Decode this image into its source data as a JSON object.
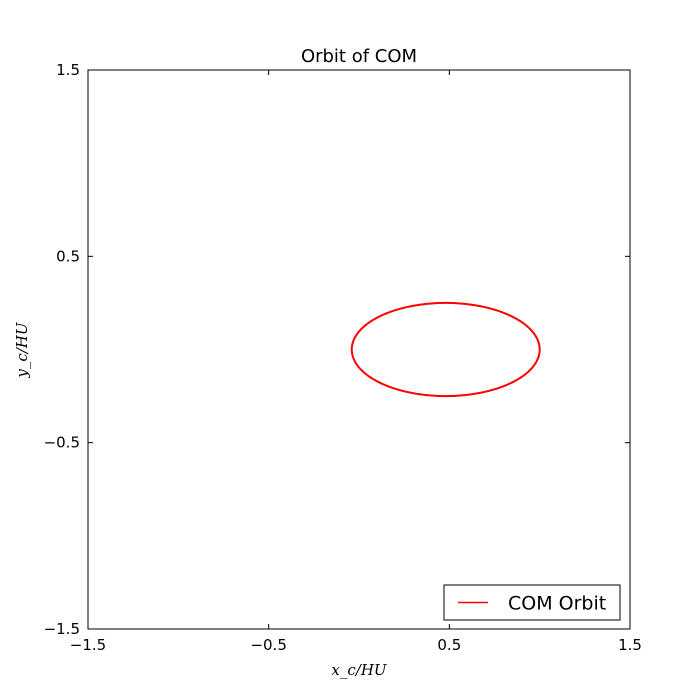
{
  "chart_data": {
    "type": "line",
    "title": "Orbit of COM",
    "xlabel": "x_c/HU",
    "ylabel": "y_c/HU",
    "xlim": [
      -1.5,
      1.5
    ],
    "ylim": [
      -1.5,
      1.5
    ],
    "xticks": [
      -1.5,
      -0.5,
      0.5,
      1.5
    ],
    "yticks": [
      -1.5,
      -0.5,
      0.5,
      1.5
    ],
    "xtick_labels": [
      "−1.5",
      "−0.5",
      "0.5",
      "1.5"
    ],
    "ytick_labels": [
      "−1.5",
      "−0.5",
      "0.5",
      "1.5"
    ],
    "grid": false,
    "legend": {
      "position": "lower-right",
      "entries": [
        "COM Orbit"
      ]
    },
    "series": [
      {
        "name": "COM Orbit",
        "color": "#ff0000",
        "orbit": {
          "center_x": 0.48,
          "center_y": 0.0,
          "semi_major_x": 0.52,
          "semi_minor_y": 0.25
        }
      }
    ]
  }
}
